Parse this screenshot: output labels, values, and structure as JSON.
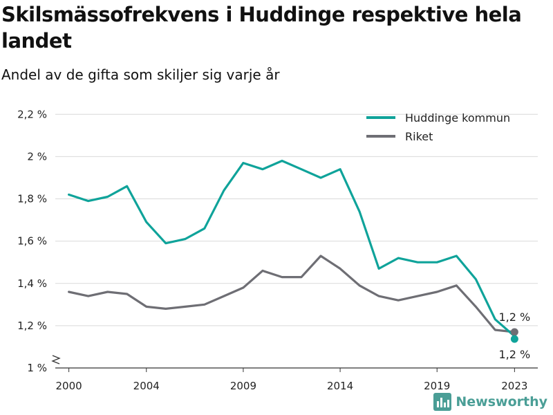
{
  "title": "Skilsmässofrekvens i Huddinge respektive hela landet",
  "subtitle": "Andel av de gifta som skiljer sig varje år",
  "brand": {
    "name": "Newsworthy",
    "icon": "bar-chart-icon",
    "color": "#4a9e96"
  },
  "colors": {
    "huddinge": "#0fa39a",
    "riket": "#6e6e74",
    "grid": "#d9d9d9",
    "axis": "#333333"
  },
  "chart_data": {
    "type": "line",
    "x": [
      2000,
      2001,
      2002,
      2003,
      2004,
      2005,
      2006,
      2007,
      2008,
      2009,
      2010,
      2011,
      2012,
      2013,
      2014,
      2015,
      2016,
      2017,
      2018,
      2019,
      2020,
      2021,
      2022,
      2023
    ],
    "xticks": [
      2000,
      2004,
      2009,
      2014,
      2019,
      2023
    ],
    "xtick_labels": [
      "2000",
      "2004",
      "2009",
      "2014",
      "2019",
      "2023"
    ],
    "xlim": [
      1999.3,
      2024.2
    ],
    "ylim": [
      1.0,
      2.25
    ],
    "yticks": [
      1.0,
      1.2,
      1.4,
      1.6,
      1.8,
      2.0,
      2.2
    ],
    "ytick_labels": [
      "1 %",
      "1,2 %",
      "1,4 %",
      "1,6 %",
      "1,8 %",
      "2 %",
      "2,2 %"
    ],
    "y_axis_break": true,
    "grid": true,
    "legend_position": "top-right",
    "series": [
      {
        "name": "Huddinge kommun",
        "color": "#0fa39a",
        "values": [
          1.82,
          1.79,
          1.81,
          1.86,
          1.69,
          1.59,
          1.61,
          1.66,
          1.84,
          1.97,
          1.94,
          1.98,
          1.94,
          1.9,
          1.94,
          1.74,
          1.47,
          1.52,
          1.5,
          1.5,
          1.53,
          1.42,
          1.23,
          1.15
        ],
        "end_label": "1,2 %"
      },
      {
        "name": "Riket",
        "color": "#6e6e74",
        "values": [
          1.36,
          1.34,
          1.36,
          1.35,
          1.29,
          1.28,
          1.29,
          1.3,
          1.34,
          1.38,
          1.46,
          1.43,
          1.43,
          1.53,
          1.47,
          1.39,
          1.34,
          1.32,
          1.34,
          1.36,
          1.39,
          1.29,
          1.18,
          1.17
        ],
        "end_label": "1,2 %"
      }
    ]
  }
}
